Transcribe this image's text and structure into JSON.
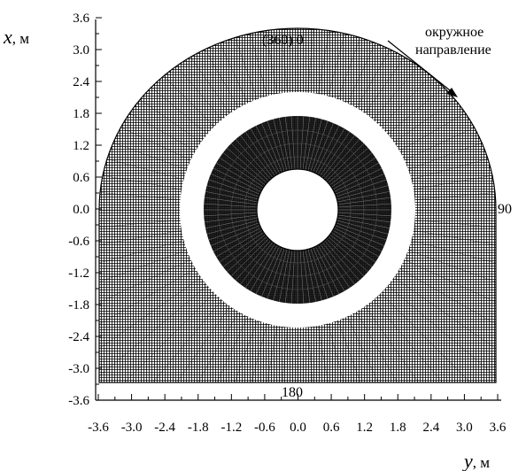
{
  "figure": {
    "x_axis_label": {
      "var": "x",
      "sep": ", ",
      "unit": "м"
    },
    "y_axis_label": {
      "var": "y",
      "sep": ", ",
      "unit": "м"
    },
    "x_ticks": [
      "3.6",
      "3.0",
      "2.4",
      "1.8",
      "1.2",
      "0.6",
      "0.0",
      "-0.6",
      "-1.2",
      "-1.8",
      "-2.4",
      "-3.0",
      "-3.6"
    ],
    "y_ticks": [
      "-3.6",
      "-3.0",
      "-2.4",
      "-1.8",
      "-1.2",
      "-0.6",
      "0.0",
      "0.6",
      "1.2",
      "1.8",
      "2.4",
      "3.0",
      "3.6"
    ],
    "angle_labels": {
      "top": "(360) 0",
      "right": "90",
      "bottom": "180"
    },
    "direction_text": [
      "окружное",
      "направление"
    ],
    "colors": {
      "mesh": "#000000",
      "background": "#ffffff"
    }
  }
}
